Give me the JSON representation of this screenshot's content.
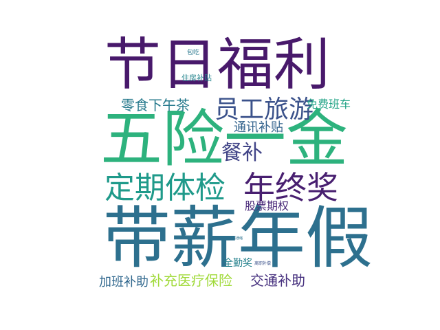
{
  "word_cloud": {
    "words": [
      {
        "text": "节日福利",
        "color": "#48196b"
      },
      {
        "text": "五险一金",
        "color": "#2db27d"
      },
      {
        "text": "带薪年假",
        "color": "#2d708e"
      },
      {
        "text": "定期体检",
        "color": "#1f9a8a"
      },
      {
        "text": "年终奖",
        "color": "#481f70"
      },
      {
        "text": "员工旅游",
        "color": "#3b528b"
      },
      {
        "text": "零食下午茶",
        "color": "#297b8e"
      },
      {
        "text": "免费班车",
        "color": "#20a386"
      },
      {
        "text": "通讯补贴",
        "color": "#33638d"
      },
      {
        "text": "餐补",
        "color": "#414487"
      },
      {
        "text": "股票期权",
        "color": "#482878"
      },
      {
        "text": "住房补贴",
        "color": "#25858e"
      },
      {
        "text": "包吃",
        "color": "#2a788e"
      },
      {
        "text": "全勤奖",
        "color": "#26828e"
      },
      {
        "text": "加班补助",
        "color": "#31688e"
      },
      {
        "text": "补充医疗保险",
        "color": "#a0da39"
      },
      {
        "text": "交通补助",
        "color": "#46307e"
      },
      {
        "text": "离职补偿",
        "color": "#3b528b"
      },
      {
        "text": "年假通缩",
        "color": "#2c728e"
      }
    ]
  }
}
